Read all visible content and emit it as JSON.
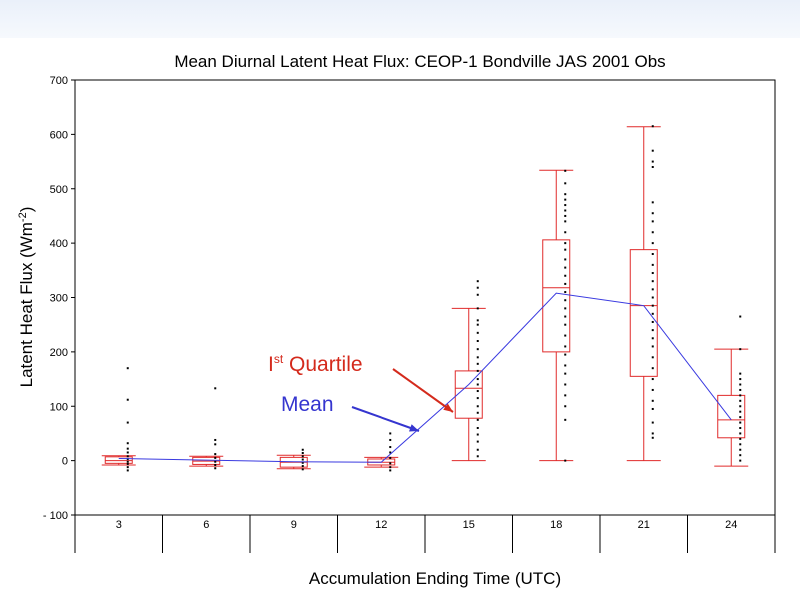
{
  "chart_data": {
    "type": "box",
    "title": "Mean Diurnal Latent Heat Flux: CEOP-1 Bondville JAS 2001 Obs",
    "xlabel": "Accumulation Ending Time (UTC)",
    "ylabel_main": "Latent Heat Flux (Wm",
    "ylabel_sup": "-2",
    "ylabel_close": ")",
    "ylim": [
      -100,
      700
    ],
    "yticks": [
      -100,
      0,
      100,
      200,
      300,
      400,
      500,
      600,
      700
    ],
    "ytick_labels": [
      "- 100",
      "0",
      "100",
      "200",
      "300",
      "400",
      "500",
      "600",
      "700"
    ],
    "categories": [
      "3",
      "6",
      "9",
      "12",
      "15",
      "18",
      "21",
      "24"
    ],
    "boxes": [
      {
        "x": "3",
        "min": -8,
        "q1": -5,
        "median": 0,
        "q3": 7,
        "max": 9
      },
      {
        "x": "6",
        "min": -10,
        "q1": -7,
        "median": -1,
        "q3": 6,
        "max": 8
      },
      {
        "x": "9",
        "min": -15,
        "q1": -12,
        "median": -3,
        "q3": 6,
        "max": 10
      },
      {
        "x": "12",
        "min": -12,
        "q1": -8,
        "median": -3,
        "q3": 3,
        "max": 6
      },
      {
        "x": "15",
        "min": 0,
        "q1": 78,
        "median": 133,
        "q3": 165,
        "max": 280
      },
      {
        "x": "18",
        "min": 0,
        "q1": 200,
        "median": 318,
        "q3": 406,
        "max": 534
      },
      {
        "x": "21",
        "min": 0,
        "q1": 155,
        "median": 285,
        "q3": 388,
        "max": 614
      },
      {
        "x": "24",
        "min": -10,
        "q1": 42,
        "median": 75,
        "q3": 120,
        "max": 205
      }
    ],
    "mean": {
      "name": "Mean",
      "x": [
        "3",
        "6",
        "9",
        "12",
        "15",
        "18",
        "21",
        "24"
      ],
      "values": [
        4,
        1,
        -2,
        -3,
        140,
        308,
        285,
        75
      ]
    },
    "observations": [
      {
        "x": "3",
        "values": [
          170,
          112,
          70,
          32,
          22,
          15,
          8,
          3,
          -2,
          -6,
          -12,
          -18
        ]
      },
      {
        "x": "6",
        "values": [
          133,
          38,
          30,
          12,
          5,
          -2,
          -8,
          -14
        ]
      },
      {
        "x": "9",
        "values": [
          20,
          14,
          8,
          2,
          -4,
          -10,
          -16
        ]
      },
      {
        "x": "12",
        "values": [
          50,
          38,
          25,
          15,
          5,
          -5,
          -12,
          -18
        ]
      },
      {
        "x": "15",
        "values": [
          330,
          318,
          305,
          280,
          258,
          250,
          235,
          220,
          205,
          190,
          178,
          165,
          150,
          140,
          128,
          115,
          100,
          88,
          75,
          60,
          48,
          35,
          20,
          8
        ]
      },
      {
        "x": "18",
        "values": [
          533,
          510,
          490,
          480,
          470,
          460,
          450,
          440,
          420,
          400,
          388,
          370,
          355,
          340,
          325,
          310,
          295,
          280,
          265,
          250,
          230,
          210,
          195,
          175,
          160,
          140,
          120,
          100,
          75,
          0
        ]
      },
      {
        "x": "21",
        "values": [
          615,
          570,
          550,
          540,
          475,
          455,
          440,
          420,
          400,
          380,
          360,
          345,
          330,
          315,
          300,
          285,
          270,
          255,
          240,
          225,
          210,
          190,
          170,
          150,
          130,
          110,
          95,
          70,
          50,
          42
        ]
      },
      {
        "x": "24",
        "values": [
          265,
          205,
          160,
          150,
          140,
          130,
          120,
          110,
          100,
          90,
          80,
          70,
          60,
          50,
          40,
          30,
          20,
          10,
          0
        ]
      }
    ],
    "annotations": [
      {
        "id": "quartile",
        "text_main": "I",
        "text_sup": "st",
        "text_rest": " Quartile",
        "color": "#d42a1c"
      },
      {
        "id": "mean",
        "text": "Mean",
        "color": "#3535cf"
      }
    ],
    "colors": {
      "box": "#e02a2a",
      "mean_line": "#3a3ae0",
      "points": "#000000"
    },
    "grid": false,
    "legend": "none"
  }
}
